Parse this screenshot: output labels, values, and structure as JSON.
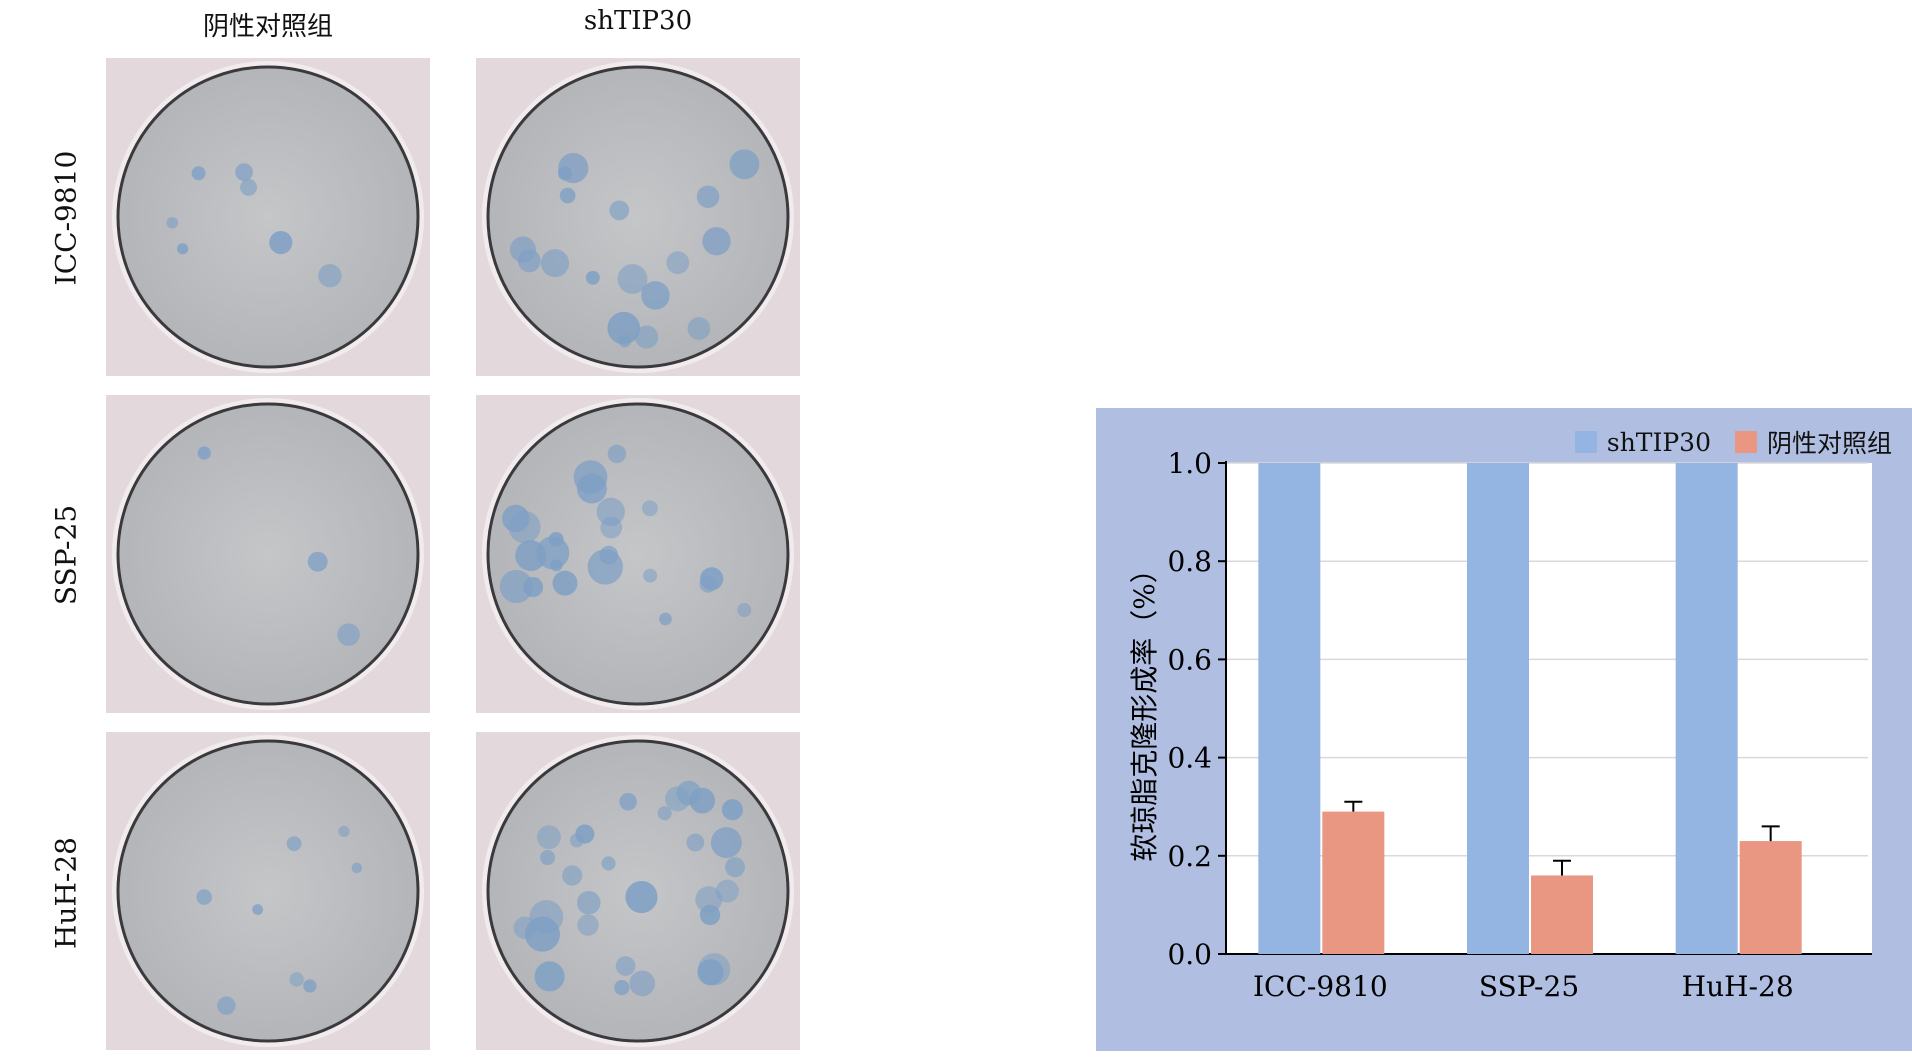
{
  "column_headers": [
    "阴性对照组",
    "shTIP30"
  ],
  "row_labels": [
    "ICC-9810",
    "SSP-25",
    "HuH-28"
  ],
  "colors": {
    "shTIP30": "#94b4e1",
    "control": "#e99682",
    "panel_bg": "#b0bfe1",
    "plate_bg": "#bdbfc2",
    "colony": "#7e9fc4"
  },
  "photo_colony_counts": [
    [
      7,
      18
    ],
    [
      3,
      22
    ],
    [
      8,
      30
    ]
  ],
  "chart_data": {
    "type": "bar",
    "categories": [
      "ICC-9810",
      "SSP-25",
      "HuH-28"
    ],
    "series": [
      {
        "name": "shTIP30",
        "values": [
          1.0,
          1.0,
          1.0
        ],
        "errors": [
          0,
          0,
          0
        ]
      },
      {
        "name": "阴性对照组",
        "values": [
          0.29,
          0.16,
          0.23
        ],
        "errors": [
          0.02,
          0.03,
          0.03
        ]
      }
    ],
    "ylabel": "软琼脂克隆形成率（%）",
    "xlabel": "",
    "ylim": [
      0,
      1.0
    ],
    "yticks": [
      "0.0",
      "0.2",
      "0.4",
      "0.6",
      "0.8",
      "1.0"
    ],
    "grid": true,
    "legend_position": "top-right"
  }
}
